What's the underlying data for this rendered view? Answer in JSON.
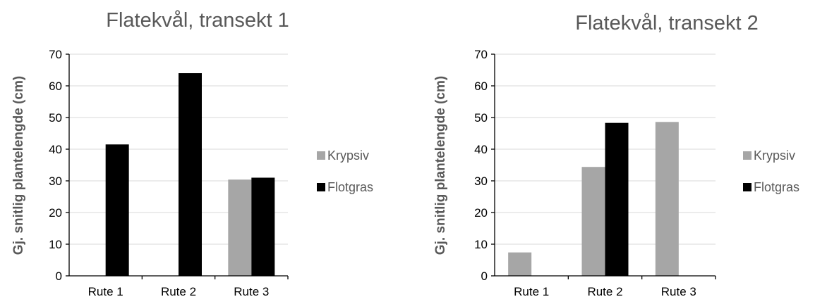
{
  "chart_data": [
    {
      "type": "bar",
      "title": "Flatekvål, transekt 1",
      "ylabel": "Gj. snitlig plantelengde (cm)",
      "xlabel": "",
      "ylim": [
        0,
        70
      ],
      "yticks": [
        0,
        10,
        20,
        30,
        40,
        50,
        60,
        70
      ],
      "grid": true,
      "legend_position": "right",
      "categories": [
        "Rute 1",
        "Rute 2",
        "Rute 3"
      ],
      "series": [
        {
          "name": "Krypsiv",
          "color": "#a6a6a6",
          "values": [
            0,
            0,
            30.4
          ]
        },
        {
          "name": "Flotgras",
          "color": "#000000",
          "values": [
            41.5,
            64,
            31
          ]
        }
      ]
    },
    {
      "type": "bar",
      "title": "Flatekvål, transekt 2",
      "ylabel": "Gj. snitlig plantelengde (cm)",
      "xlabel": "",
      "ylim": [
        0,
        70
      ],
      "yticks": [
        0,
        10,
        20,
        30,
        40,
        50,
        60,
        70
      ],
      "grid": true,
      "legend_position": "right",
      "categories": [
        "Rute 1",
        "Rute 2",
        "Rute 3"
      ],
      "series": [
        {
          "name": "Krypsiv",
          "color": "#a6a6a6",
          "values": [
            7.4,
            34.4,
            48.6
          ]
        },
        {
          "name": "Flotgras",
          "color": "#000000",
          "values": [
            0,
            48.3,
            0
          ]
        }
      ]
    }
  ]
}
